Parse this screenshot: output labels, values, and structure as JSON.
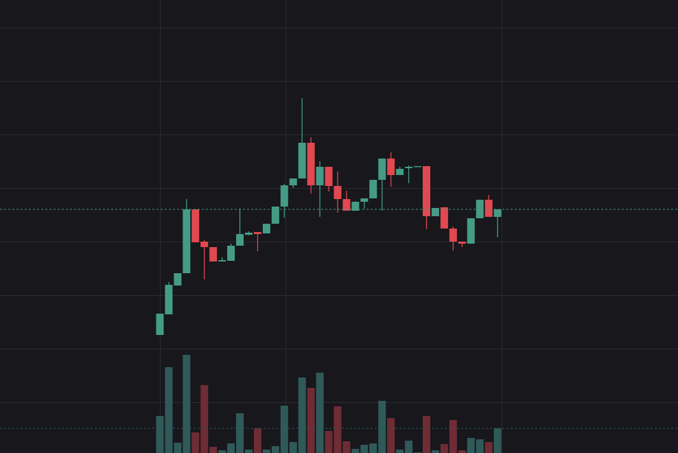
{
  "chart_data": {
    "type": "candlestick",
    "open": [
      172,
      202,
      244,
      262,
      355,
      308,
      300,
      279,
      280,
      302,
      318,
      322,
      320,
      334,
      359,
      390,
      400,
      452,
      390,
      417,
      389,
      370,
      353,
      366,
      371,
      398,
      429,
      405,
      415,
      417,
      418,
      345,
      358,
      327,
      308,
      305,
      342,
      369,
      344
    ],
    "high": [
      203,
      249,
      262,
      370,
      355,
      310,
      300,
      285,
      305,
      356,
      323,
      322,
      334,
      359,
      392,
      400,
      517,
      460,
      425,
      417,
      410,
      382,
      367,
      371,
      398,
      429,
      438,
      417,
      419,
      418,
      418,
      357,
      358,
      330,
      308,
      342,
      369,
      376,
      355
    ],
    "low": [
      172,
      202,
      244,
      262,
      307,
      253,
      279,
      279,
      280,
      302,
      317,
      294,
      320,
      334,
      343,
      386,
      400,
      378,
      344,
      381,
      350,
      353,
      353,
      356,
      371,
      353,
      388,
      405,
      393,
      417,
      326,
      345,
      327,
      295,
      300,
      305,
      342,
      344,
      314
    ],
    "close": [
      203,
      245,
      262,
      355,
      307,
      300,
      279,
      281,
      302,
      319,
      321,
      319,
      334,
      359,
      390,
      400,
      452,
      390,
      417,
      389,
      370,
      353,
      366,
      371,
      398,
      429,
      405,
      414,
      417,
      418,
      345,
      357,
      327,
      308,
      305,
      342,
      369,
      344,
      355
    ],
    "volume": [
      54,
      125,
      15,
      143,
      30,
      99,
      9,
      4,
      14,
      58,
      5,
      36,
      5,
      10,
      69,
      16,
      110,
      95,
      117,
      32,
      68,
      17,
      6,
      12,
      14,
      76,
      51,
      5,
      18,
      1,
      54,
      4,
      13,
      48,
      4,
      22,
      20,
      16,
      36
    ],
    "ylim": [
      0,
      660
    ],
    "yticks": [
      74,
      152,
      230,
      308,
      386,
      464,
      542,
      620
    ],
    "y2lim": [
      0,
      660
    ],
    "grid": true,
    "up_color": "#459c86",
    "down_color": "#e0494f",
    "volume_up_color": "#2f5a59",
    "volume_down_color": "#6e2c35"
  }
}
